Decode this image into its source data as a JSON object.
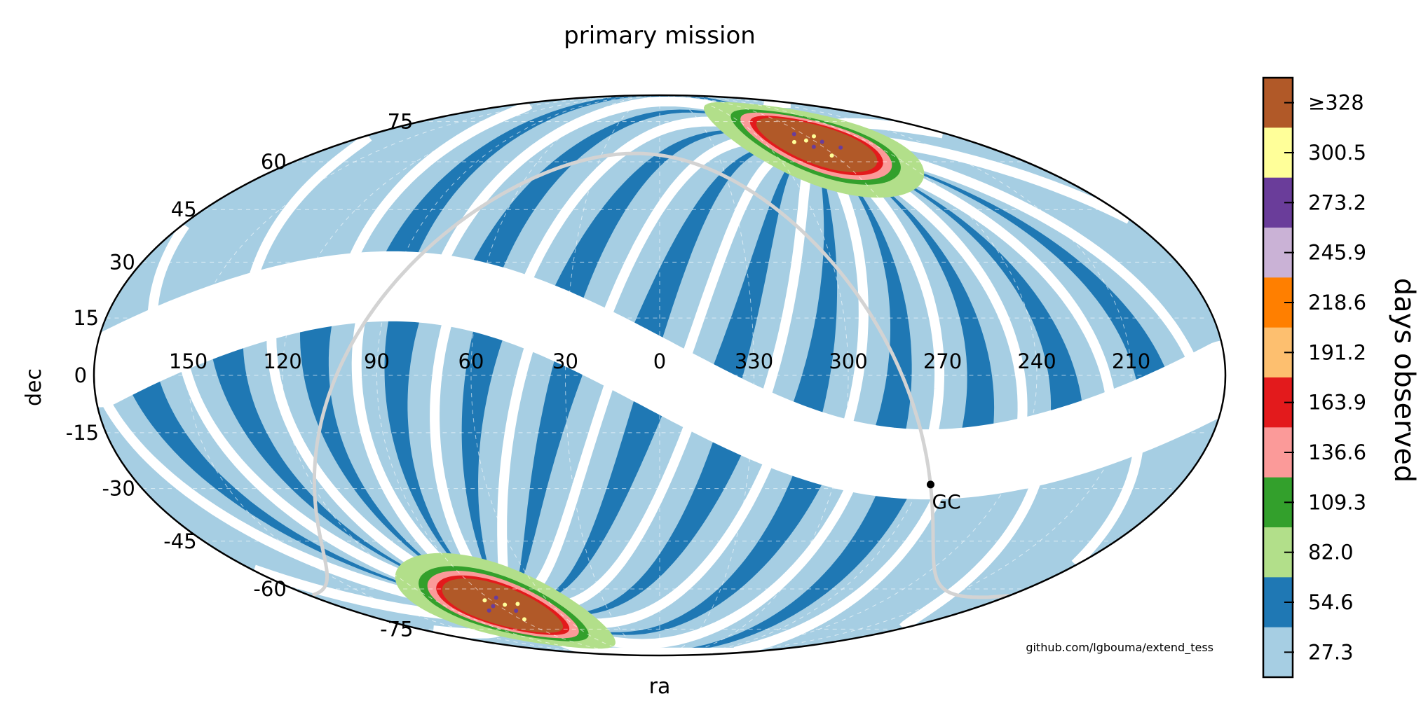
{
  "chart_data": {
    "type": "sky-map",
    "projection": "mollweide",
    "title": "primary mission",
    "xlabel": "ra",
    "ylabel": "dec",
    "ra_ticks": [
      "150",
      "120",
      "90",
      "60",
      "30",
      "0",
      "330",
      "300",
      "270",
      "240",
      "210"
    ],
    "dec_ticks": [
      "75",
      "60",
      "45",
      "30",
      "15",
      "0",
      "-15",
      "-30",
      "-45",
      "-60",
      "-75"
    ],
    "colorbar": {
      "label": "days observed",
      "ticks": [
        "≥328",
        "300.5",
        "273.2",
        "245.9",
        "218.6",
        "191.2",
        "163.9",
        "136.6",
        "109.3",
        "82.0",
        "54.6",
        "27.3"
      ],
      "colors": [
        "#b15928",
        "#ffff99",
        "#6a3d9a",
        "#cab2d6",
        "#ff7f00",
        "#fdbf6f",
        "#e31a1c",
        "#fb9a99",
        "#33a02c",
        "#b2df8a",
        "#1f78b4",
        "#a6cee3"
      ]
    },
    "annotations": [
      {
        "label": "GC",
        "ra": 266.4,
        "dec": -28.9
      }
    ],
    "ecliptic_pole_north": {
      "ra": 270,
      "dec": 66.6
    },
    "ecliptic_pole_south": {
      "ra": 90,
      "dec": -66.6
    },
    "galactic_plane_color": "#d3d3d3",
    "background_color": "#a6cee3",
    "watermark": "github.com/lgbouma/extend_tess"
  }
}
